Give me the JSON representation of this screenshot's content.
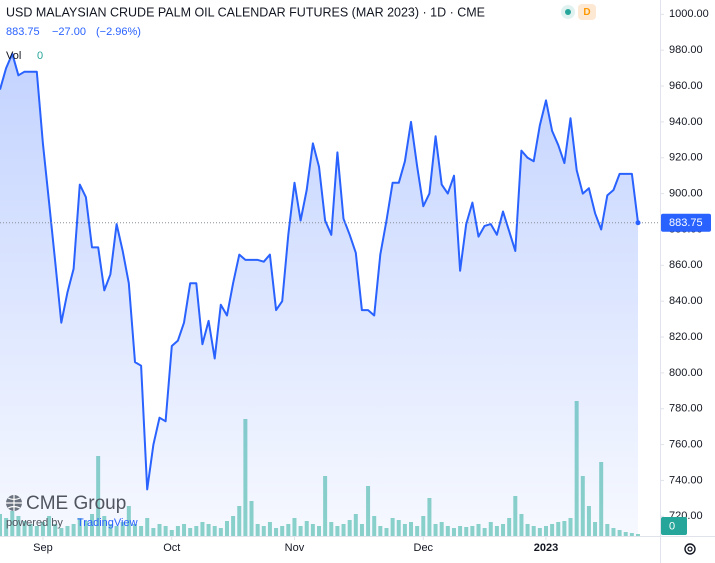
{
  "chart_data": {
    "type": "line",
    "title": "USD MALAYSIAN CRUDE PALM OIL CALENDAR FUTURES (MAR 2023) · 1D · CME",
    "header": {
      "last": "883.75",
      "change": "−27.00",
      "change_pct": "(−2.96%)"
    },
    "categories": [
      null,
      null,
      null,
      null,
      null,
      null,
      null,
      "Sep",
      null,
      null,
      null,
      null,
      null,
      null,
      null,
      null,
      null,
      null,
      null,
      null,
      null,
      null,
      null,
      null,
      null,
      null,
      null,
      null,
      "Oct",
      null,
      null,
      null,
      null,
      null,
      null,
      null,
      null,
      null,
      null,
      null,
      null,
      null,
      null,
      null,
      null,
      null,
      null,
      null,
      "Nov",
      null,
      null,
      null,
      null,
      null,
      null,
      null,
      null,
      null,
      null,
      null,
      null,
      null,
      null,
      null,
      null,
      null,
      null,
      null,
      null,
      "Dec",
      null,
      null,
      null,
      null,
      null,
      null,
      null,
      null,
      null,
      null,
      null,
      null,
      null,
      null,
      null,
      null,
      null,
      null,
      null,
      "2023",
      null,
      null,
      null,
      null,
      null,
      null,
      null,
      null,
      null,
      null,
      null,
      null,
      null,
      null,
      null
    ],
    "series": [
      {
        "name": "USD MALAYSIAN CRUDE PALM OIL CALENDAR FUTURES",
        "color": "#2962ff",
        "values": [
          958,
          970,
          978,
          966,
          968,
          968,
          968,
          928,
          895,
          862,
          828,
          845,
          858,
          905,
          898,
          870,
          870,
          846,
          855,
          883,
          868,
          850,
          806,
          804,
          735,
          760,
          775,
          773,
          815,
          818,
          828,
          850,
          850,
          816,
          829,
          808,
          838,
          832,
          850,
          866,
          863,
          863,
          863,
          862,
          866,
          835,
          840,
          877,
          906,
          885,
          902,
          928,
          915,
          885,
          877,
          923,
          886,
          877,
          867,
          835,
          835,
          832,
          866,
          885,
          906,
          906,
          918,
          940,
          915,
          893,
          900,
          932,
          905,
          900,
          910,
          857,
          883,
          895,
          876,
          882,
          883,
          877,
          890,
          879,
          868,
          924,
          920,
          918,
          938,
          952,
          935,
          927,
          917,
          942,
          913,
          900,
          903,
          889,
          880,
          899,
          902,
          911,
          911,
          911,
          883.75
        ]
      }
    ],
    "ylim": [
      709,
      1008
    ],
    "yticks": [
      {
        "value": 720,
        "label": "720.00"
      },
      {
        "value": 740,
        "label": "740.00"
      },
      {
        "value": 760,
        "label": "760.00"
      },
      {
        "value": 780,
        "label": "780.00"
      },
      {
        "value": 800,
        "label": "800.00"
      },
      {
        "value": 820,
        "label": "820.00"
      },
      {
        "value": 840,
        "label": "840.00"
      },
      {
        "value": 860,
        "label": "860.00"
      },
      {
        "value": 880,
        "label": "880.00"
      },
      {
        "value": 900,
        "label": "900.00"
      },
      {
        "value": 920,
        "label": "920.00"
      },
      {
        "value": 940,
        "label": "940.00"
      },
      {
        "value": 960,
        "label": "960.00"
      },
      {
        "value": 980,
        "label": "980.00"
      },
      {
        "value": 1000,
        "label": "1000.00"
      }
    ],
    "grid": false,
    "volume": {
      "name": "Vol",
      "current": 0,
      "color": "#8dd5c8",
      "ylim": [
        0,
        150
      ],
      "yticks": [
        0
      ],
      "values": [
        22,
        18,
        25,
        20,
        15,
        12,
        10,
        14,
        20,
        12,
        8,
        10,
        12,
        18,
        15,
        22,
        80,
        20,
        12,
        10,
        14,
        30,
        12,
        10,
        18,
        8,
        12,
        10,
        6,
        10,
        12,
        8,
        10,
        14,
        12,
        10,
        8,
        15,
        20,
        30,
        117,
        35,
        12,
        10,
        14,
        8,
        10,
        12,
        18,
        10,
        15,
        12,
        10,
        60,
        14,
        10,
        12,
        16,
        22,
        12,
        50,
        20,
        10,
        8,
        18,
        16,
        12,
        14,
        10,
        20,
        38,
        12,
        14,
        10,
        8,
        10,
        9,
        10,
        12,
        8,
        14,
        10,
        12,
        18,
        40,
        22,
        12,
        10,
        8,
        10,
        12,
        14,
        15,
        18,
        135,
        60,
        30,
        14,
        74,
        12,
        8,
        6,
        4,
        3,
        2
      ]
    },
    "branding": {
      "logo": "CME Group",
      "powered_by": "powered by",
      "platform": "TradingView"
    }
  }
}
